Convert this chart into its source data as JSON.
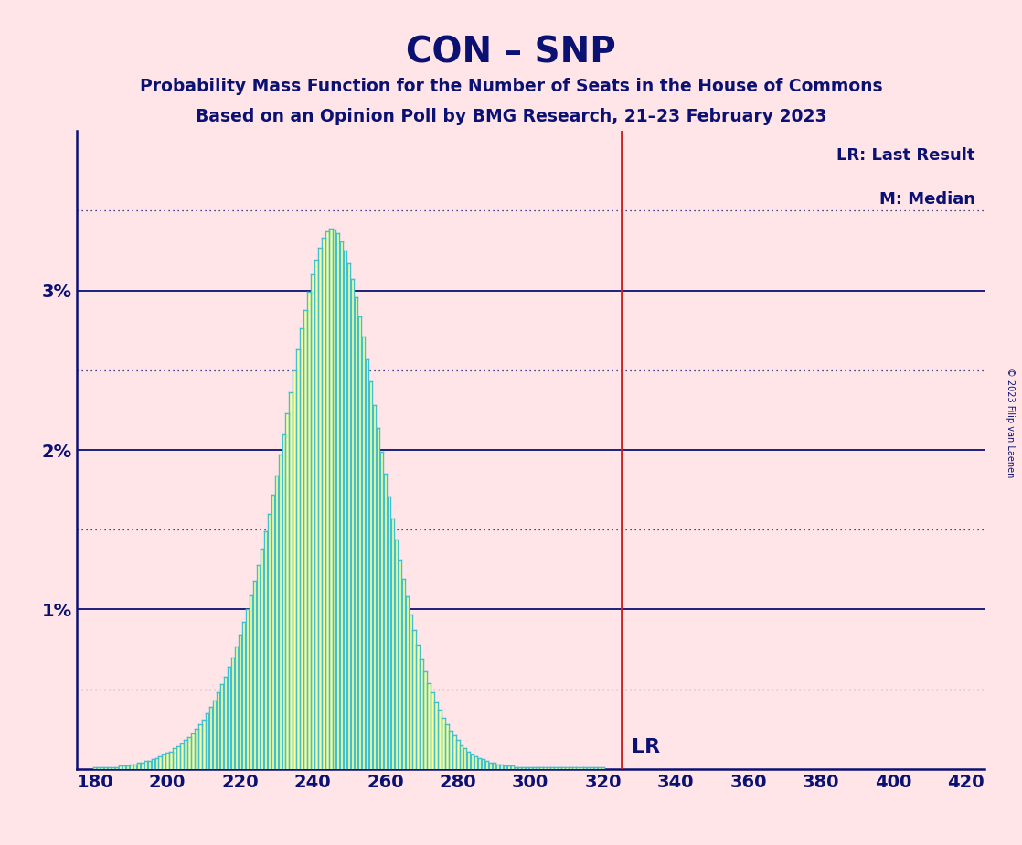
{
  "title": "CON – SNP",
  "subtitle1": "Probability Mass Function for the Number of Seats in the House of Commons",
  "subtitle2": "Based on an Opinion Poll by BMG Research, 21–23 February 2023",
  "copyright": "© 2023 Filip van Laenen",
  "legend_lr": "LR: Last Result",
  "legend_m": "M: Median",
  "lr_label": "LR",
  "lr_value": 325,
  "background_color": "#FFE4E8",
  "bar_color_inner": "#FFFF99",
  "bar_color_outer": "#40C0D0",
  "text_color": "#0A1172",
  "red_line_color": "#CC2222",
  "xmin": 175,
  "xmax": 425,
  "ymin": 0.0,
  "ymax": 0.04,
  "xticks": [
    180,
    200,
    220,
    240,
    260,
    280,
    300,
    320,
    340,
    360,
    380,
    400,
    420
  ],
  "yticks_solid": [
    0.01,
    0.02,
    0.03
  ],
  "yticks_dotted": [
    0.005,
    0.015,
    0.025,
    0.035
  ],
  "seats": [
    180,
    181,
    182,
    183,
    184,
    185,
    186,
    187,
    188,
    189,
    190,
    191,
    192,
    193,
    194,
    195,
    196,
    197,
    198,
    199,
    200,
    201,
    202,
    203,
    204,
    205,
    206,
    207,
    208,
    209,
    210,
    211,
    212,
    213,
    214,
    215,
    216,
    217,
    218,
    219,
    220,
    221,
    222,
    223,
    224,
    225,
    226,
    227,
    228,
    229,
    230,
    231,
    232,
    233,
    234,
    235,
    236,
    237,
    238,
    239,
    240,
    241,
    242,
    243,
    244,
    245,
    246,
    247,
    248,
    249,
    250,
    251,
    252,
    253,
    254,
    255,
    256,
    257,
    258,
    259,
    260,
    261,
    262,
    263,
    264,
    265,
    266,
    267,
    268,
    269,
    270,
    271,
    272,
    273,
    274,
    275,
    276,
    277,
    278,
    279,
    280,
    281,
    282,
    283,
    284,
    285,
    286,
    287,
    288,
    289,
    290,
    291,
    292,
    293,
    294,
    295,
    296,
    297,
    298,
    299,
    300,
    301,
    302,
    303,
    304,
    305,
    306,
    307,
    308,
    309,
    310,
    311,
    312,
    313,
    314,
    315,
    316,
    317,
    318,
    319,
    320
  ],
  "probs": [
    0.0001,
    0.0001,
    0.0001,
    0.0001,
    0.0001,
    0.0001,
    0.0001,
    0.0002,
    0.0002,
    0.0002,
    0.0003,
    0.0003,
    0.0004,
    0.0004,
    0.0005,
    0.0005,
    0.0006,
    0.0007,
    0.0008,
    0.0009,
    0.001,
    0.0011,
    0.0013,
    0.0014,
    0.0016,
    0.0018,
    0.002,
    0.0022,
    0.0025,
    0.0028,
    0.0031,
    0.0035,
    0.0039,
    0.0043,
    0.0048,
    0.0053,
    0.0058,
    0.0064,
    0.007,
    0.0077,
    0.0084,
    0.0092,
    0.01,
    0.0109,
    0.0118,
    0.0128,
    0.0138,
    0.0149,
    0.016,
    0.0172,
    0.0184,
    0.0197,
    0.021,
    0.0223,
    0.0236,
    0.025,
    0.0263,
    0.0276,
    0.0288,
    0.0299,
    0.031,
    0.0319,
    0.0327,
    0.0333,
    0.0337,
    0.0339,
    0.0338,
    0.0336,
    0.0331,
    0.0325,
    0.0317,
    0.0307,
    0.0296,
    0.0284,
    0.0271,
    0.0257,
    0.0243,
    0.0228,
    0.0214,
    0.0199,
    0.0185,
    0.0171,
    0.0157,
    0.0144,
    0.0131,
    0.0119,
    0.0108,
    0.0097,
    0.0087,
    0.0078,
    0.0069,
    0.0061,
    0.0054,
    0.0048,
    0.0042,
    0.0037,
    0.0032,
    0.0028,
    0.0024,
    0.0021,
    0.0018,
    0.0015,
    0.0013,
    0.0011,
    0.0009,
    0.0008,
    0.0007,
    0.0006,
    0.0005,
    0.0004,
    0.0004,
    0.0003,
    0.0003,
    0.0002,
    0.0002,
    0.0002,
    0.0001,
    0.0001,
    0.0001,
    0.0001,
    0.0001,
    0.0001,
    0.0001,
    0.0001,
    0.0001,
    0.0001,
    0.0001,
    0.0001,
    0.0001,
    0.0001,
    0.0001,
    0.0001,
    0.0001,
    0.0001,
    0.0001,
    0.0001,
    0.0001,
    0.0001,
    0.0001,
    0.0001,
    0.0001
  ]
}
